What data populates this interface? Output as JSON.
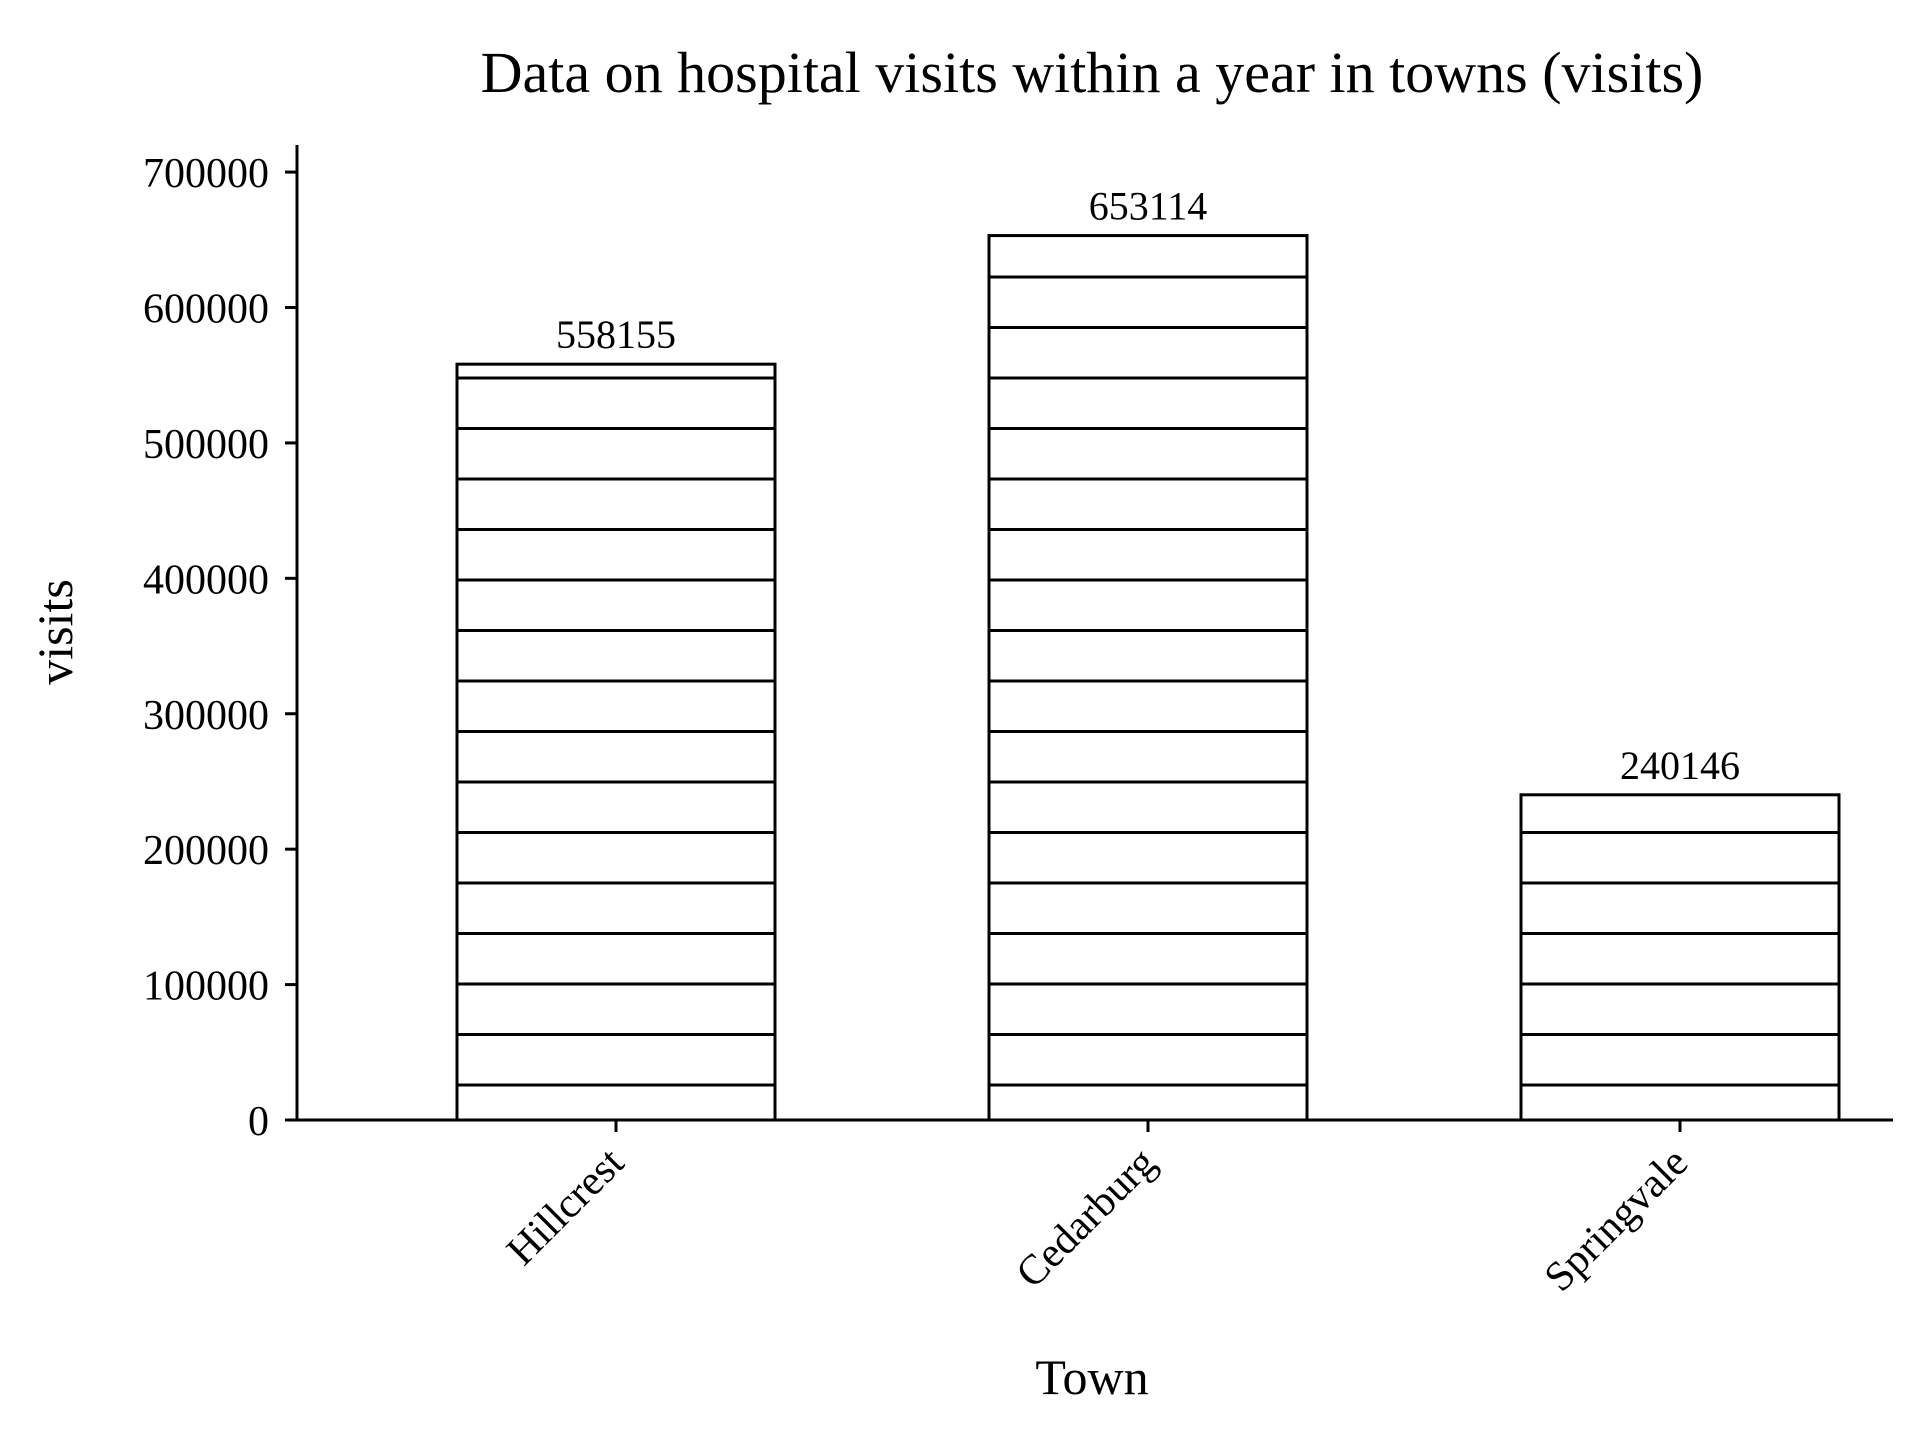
{
  "chart_data": {
    "type": "bar",
    "title": "Data on hospital visits within a year in towns (visits)",
    "xlabel": "Town",
    "ylabel": "visits",
    "categories": [
      "Hillcrest",
      "Cedarburg",
      "Springvale"
    ],
    "values": [
      558155,
      653114,
      240146
    ],
    "data_labels": [
      "558155",
      "653114",
      "240146"
    ],
    "ylim": [
      0,
      720000
    ],
    "yticks": [
      0,
      100000,
      200000,
      300000,
      400000,
      500000,
      600000,
      700000
    ],
    "ytick_labels": [
      "0",
      "100000",
      "200000",
      "300000",
      "400000",
      "500000",
      "600000",
      "700000"
    ],
    "grid": false,
    "legend": "none",
    "bar_fill_color": "#ffffff",
    "bar_edge_color": "#000000",
    "bar_pattern": "horizontal-hatch"
  }
}
